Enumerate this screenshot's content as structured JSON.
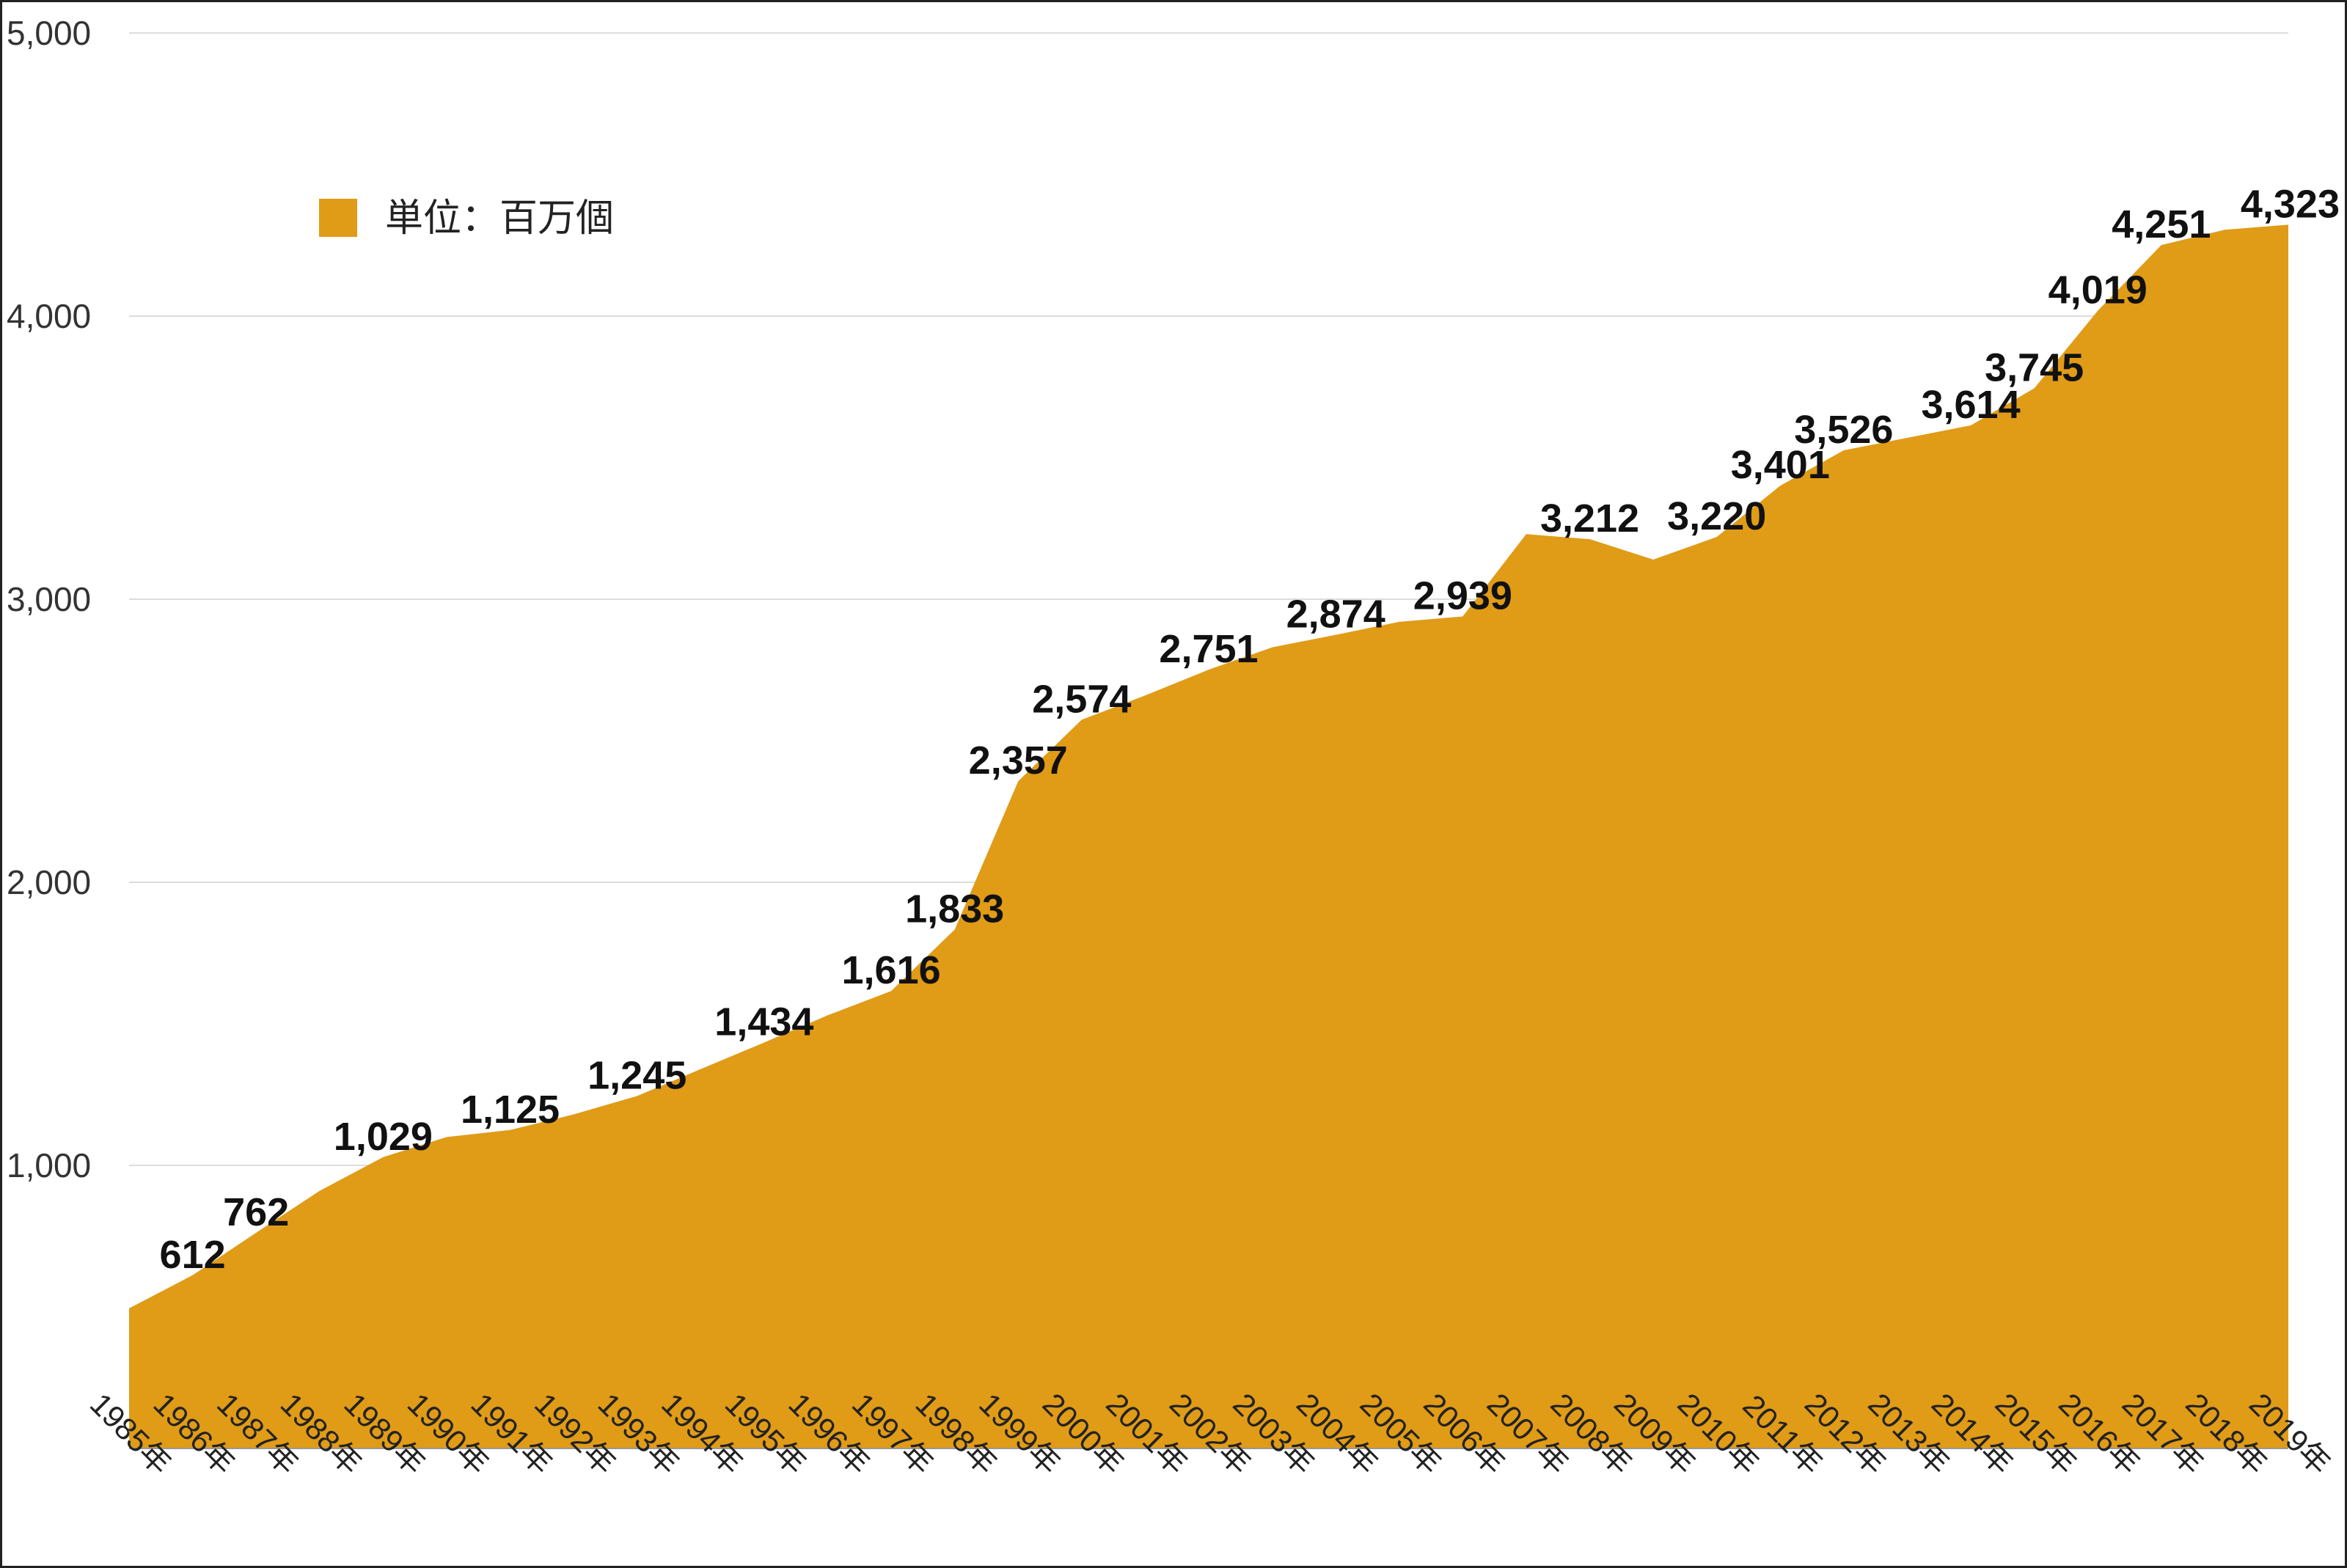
{
  "chart_data": {
    "type": "area",
    "categories": [
      "1985年",
      "1986年",
      "1987年",
      "1988年",
      "1989年",
      "1990年",
      "1991年",
      "1992年",
      "1993年",
      "1994年",
      "1995年",
      "1996年",
      "1997年",
      "1998年",
      "1999年",
      "2000年",
      "2001年",
      "2002年",
      "2003年",
      "2004年",
      "2005年",
      "2006年",
      "2007年",
      "2008年",
      "2009年",
      "2010年",
      "2011年",
      "2012年",
      "2013年",
      "2014年",
      "2015年",
      "2016年",
      "2017年",
      "2018年",
      "2019年"
    ],
    "series": [
      {
        "name": "単位：百万個",
        "values": [
          495,
          612,
          762,
          910,
          1029,
          1100,
          1125,
          1180,
          1245,
          1340,
          1434,
          1530,
          1616,
          1833,
          2357,
          2574,
          2660,
          2751,
          2830,
          2874,
          2920,
          2939,
          3230,
          3212,
          3140,
          3220,
          3401,
          3526,
          3570,
          3614,
          3745,
          4019,
          4251,
          4305,
          4323
        ],
        "labels": [
          "",
          "612",
          "762",
          "",
          "1,029",
          "",
          "1,125",
          "",
          "1,245",
          "",
          "1,434",
          "",
          "1,616",
          "1,833",
          "2,357",
          "2,574",
          "",
          "2,751",
          "",
          "2,874",
          "",
          "2,939",
          "",
          "3,212",
          "",
          "3,220",
          "3,401",
          "3,526",
          "",
          "3,614",
          "3,745",
          "4,019",
          "4,251",
          "",
          "4,323"
        ]
      }
    ],
    "legend_text": "単位：百万個",
    "legend_position": "top-left",
    "ylim": [
      0,
      5000
    ],
    "yticks": [
      1000,
      2000,
      3000,
      4000,
      5000
    ],
    "ytick_labels": [
      "1,000",
      "2,000",
      "3,000",
      "4,000",
      "5,000"
    ],
    "grid": true,
    "colors": {
      "area": "#E09B17",
      "grid": "#DDDDDD",
      "label": "#111111"
    }
  }
}
